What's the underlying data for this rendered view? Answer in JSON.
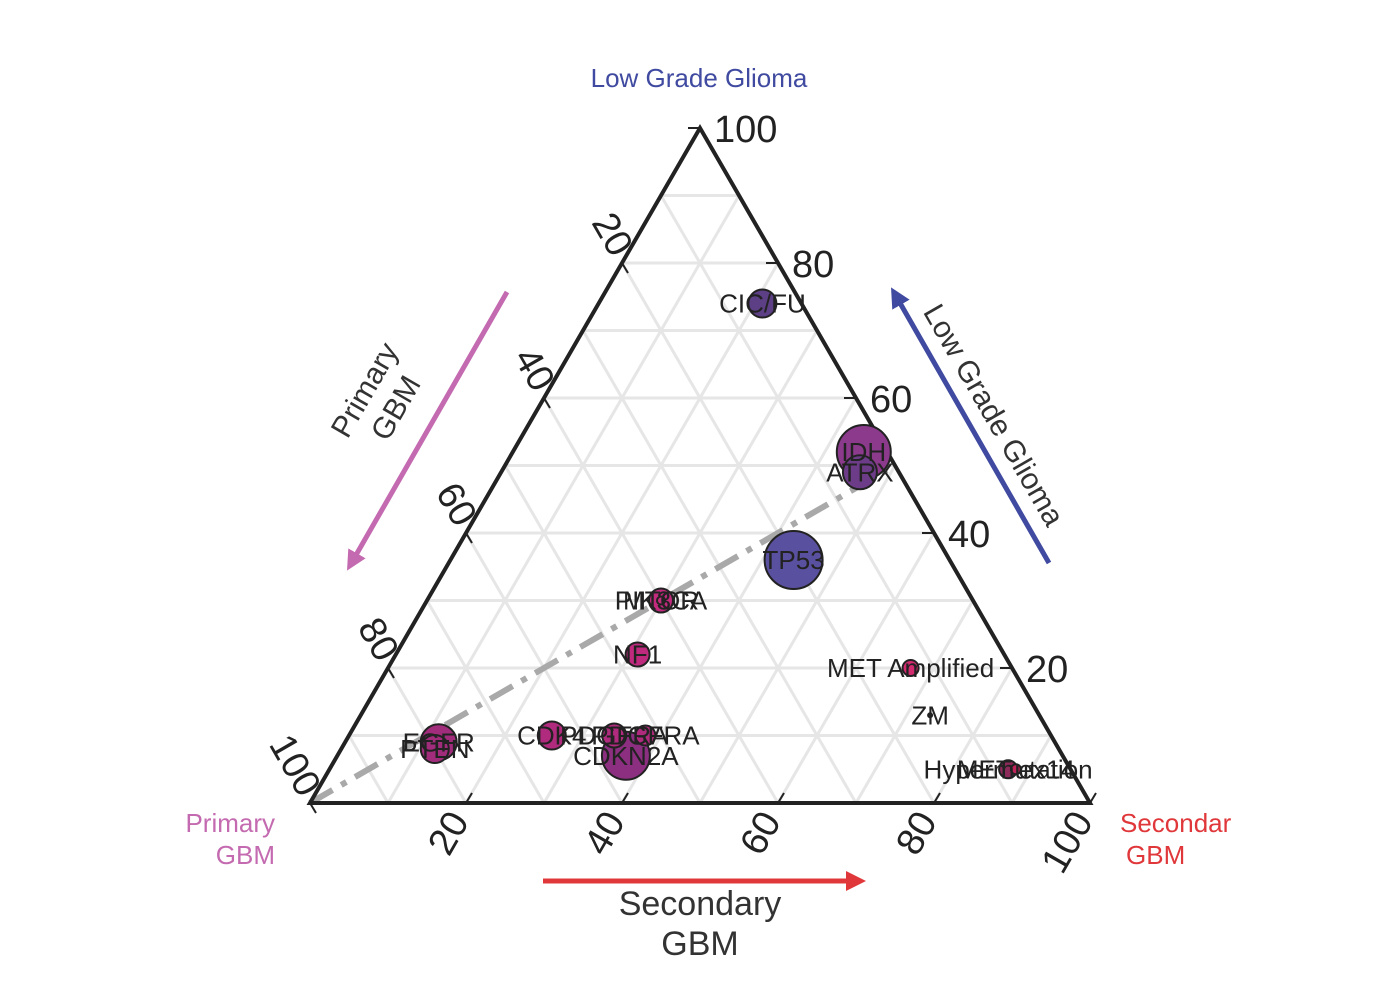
{
  "chart_data": {
    "type": "scatter",
    "subtype": "ternary",
    "grid": true,
    "axes": {
      "top": {
        "corner_label": "Low Grade Glioma",
        "side_label": "Low Grade Glioma",
        "ticks": [
          "20",
          "40",
          "60",
          "80",
          "100"
        ],
        "color": "#3f4aa0"
      },
      "left": {
        "corner_label_lines": [
          "Primary",
          "GBM"
        ],
        "side_label_lines": [
          "Primary",
          "GBM"
        ],
        "ticks": [
          "20",
          "40",
          "60",
          "80",
          "100"
        ],
        "color": "#c46ab0"
      },
      "right": {
        "corner_label_lines": [
          "Secondar",
          "GBM"
        ],
        "side_label_lines": [
          "Secondary",
          "GBM"
        ],
        "ticks": [
          "20",
          "40",
          "60",
          "80",
          "100"
        ],
        "color": "#e0373a"
      }
    },
    "reference_line": {
      "style": "dash-dot",
      "color": "#a9a9a9",
      "from": {
        "primary": 100,
        "secondary": 0,
        "lgg": 0
      },
      "to": {
        "primary": 0,
        "secondary": 50,
        "lgg": 50
      }
    },
    "points": [
      {
        "label": "CIC/FU",
        "primary": 5,
        "secondary": 21,
        "lgg": 74,
        "size": 14,
        "color": "#5c3f84"
      },
      {
        "label": "IDH",
        "primary": 3,
        "secondary": 45,
        "lgg": 52,
        "size": 27,
        "color": "#8b3a8c"
      },
      {
        "label": "ATRX",
        "primary": 5,
        "secondary": 46,
        "lgg": 49,
        "size": 17,
        "color": "#6c3c88"
      },
      {
        "label": "TP53",
        "primary": 20,
        "secondary": 44,
        "lgg": 36,
        "size": 29,
        "color": "#5950a0"
      },
      {
        "label": "MTOR",
        "primary": 40,
        "secondary": 30,
        "lgg": 30,
        "size": 4,
        "color": "#c42e7c"
      },
      {
        "label": "PIK3CA",
        "primary": 40,
        "secondary": 30,
        "lgg": 30,
        "size": 12,
        "color": "#c22a7e"
      },
      {
        "label": "NF1",
        "primary": 47,
        "secondary": 31,
        "lgg": 22,
        "size": 12,
        "color": "#c02a7e"
      },
      {
        "label": "MET Amplified",
        "primary": 13,
        "secondary": 67,
        "lgg": 20,
        "size": 8,
        "color": "#d22a6e"
      },
      {
        "label": "ZM",
        "primary": 14,
        "secondary": 73,
        "lgg": 13,
        "size": 2,
        "color": "#333333"
      },
      {
        "label": "MET ex14",
        "primary": 7,
        "secondary": 88,
        "lgg": 5,
        "size": 5,
        "color": "#c0245a"
      },
      {
        "label": "Hypermutation",
        "primary": 8,
        "secondary": 87,
        "lgg": 5,
        "size": 9,
        "color": "#8c2a5a"
      },
      {
        "label": "EGFR",
        "primary": 79,
        "secondary": 12,
        "lgg": 9,
        "size": 18,
        "color": "#a22c7c"
      },
      {
        "label": "PTEN",
        "primary": 80,
        "secondary": 12,
        "lgg": 8,
        "size": 14,
        "color": "#a22c7c"
      },
      {
        "label": "CDK4",
        "primary": 64,
        "secondary": 26,
        "lgg": 10,
        "size": 14,
        "color": "#b02b7e"
      },
      {
        "label": "PDGFRA",
        "primary": 56,
        "secondary": 34,
        "lgg": 10,
        "size": 12,
        "color": "#b02b7e"
      },
      {
        "label": "PDGFRA",
        "primary": 52,
        "secondary": 38,
        "lgg": 10,
        "size": 10,
        "color": "#b02b7e"
      },
      {
        "label": "CDKN2A",
        "primary": 56,
        "secondary": 37,
        "lgg": 7,
        "size": 24,
        "color": "#8c2f80"
      }
    ]
  }
}
